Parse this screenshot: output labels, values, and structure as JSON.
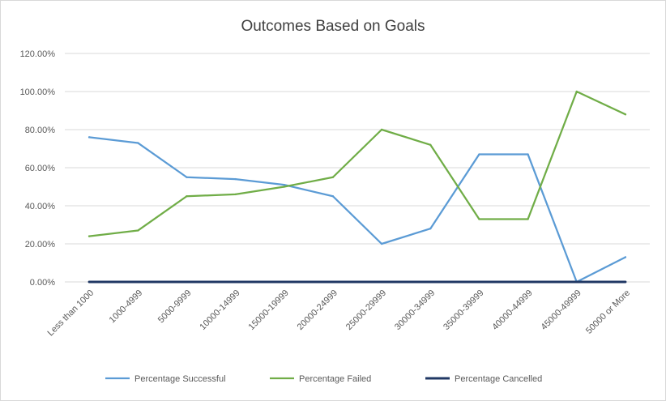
{
  "chart_data": {
    "type": "line",
    "title": "Outcomes Based on Goals",
    "xlabel": "",
    "ylabel": "",
    "ylim": [
      0,
      120
    ],
    "y_ticks": [
      "0.00%",
      "20.00%",
      "40.00%",
      "60.00%",
      "80.00%",
      "100.00%",
      "120.00%"
    ],
    "categories": [
      "Less than 1000",
      "1000-4999",
      "5000-9999",
      "10000-14999",
      "15000-19999",
      "20000-24999",
      "25000-29999",
      "30000-34999",
      "35000-39999",
      "40000-44999",
      "45000-49999",
      "50000 or More"
    ],
    "series": [
      {
        "name": "Percentage Successful",
        "color": "#5b9bd5",
        "values": [
          76,
          73,
          55,
          54,
          51,
          45,
          20,
          28,
          67,
          67,
          0,
          13
        ]
      },
      {
        "name": "Percentage Failed",
        "color": "#70ad47",
        "values": [
          24,
          27,
          45,
          46,
          50,
          55,
          80,
          72,
          33,
          33,
          100,
          88
        ]
      },
      {
        "name": "Percentage Cancelled",
        "color": "#203864",
        "values": [
          0,
          0,
          0,
          0,
          0,
          0,
          0,
          0,
          0,
          0,
          0,
          0
        ]
      }
    ],
    "grid": true,
    "legend_position": "bottom"
  }
}
